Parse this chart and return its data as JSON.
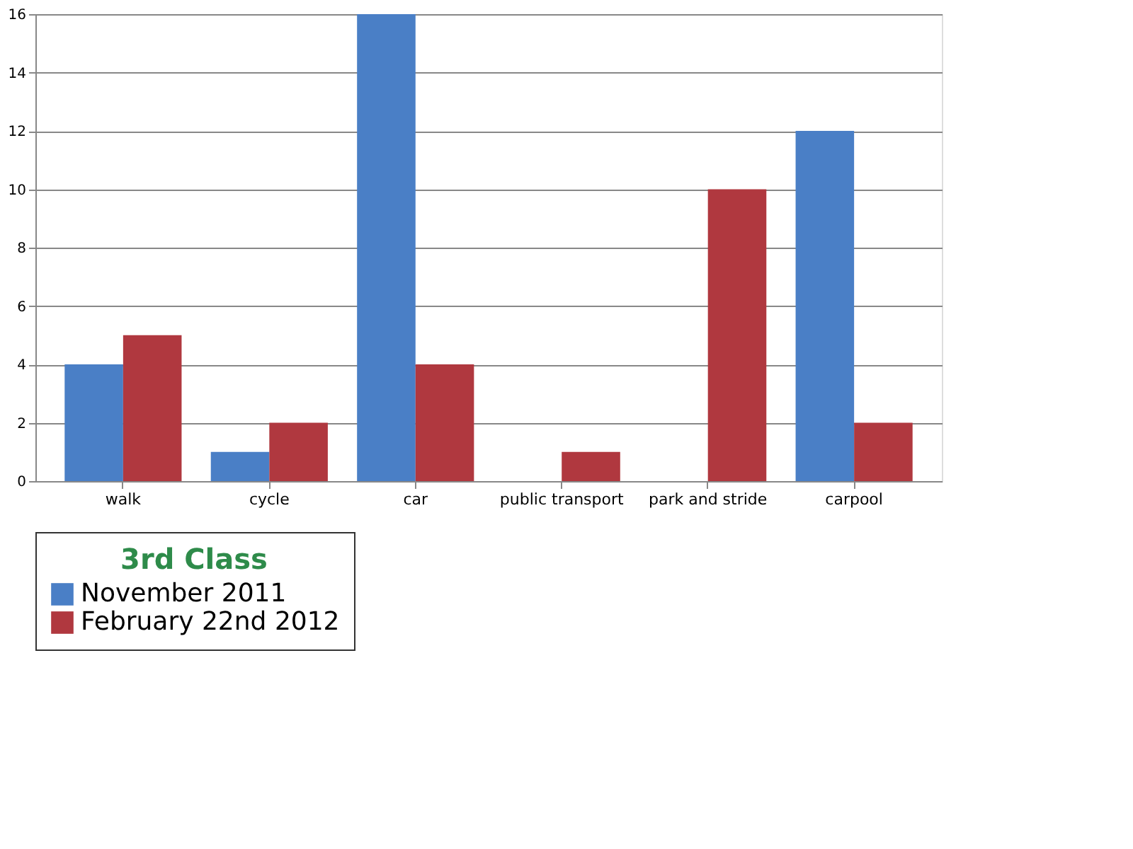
{
  "chart_data": {
    "type": "bar",
    "categories": [
      "walk",
      "cycle",
      "car",
      "public transport",
      "park and stride",
      "carpool"
    ],
    "series": [
      {
        "name": "November 2011",
        "color": "#4a7fc6",
        "values": [
          4,
          1,
          16,
          0,
          0,
          12
        ]
      },
      {
        "name": "February 22nd 2012",
        "color": "#b0383f",
        "values": [
          5,
          2,
          4,
          1,
          10,
          2
        ]
      }
    ],
    "legend_title": "3rd Class",
    "ylim": [
      0,
      16
    ],
    "yticks": [
      0,
      2,
      4,
      6,
      8,
      10,
      12,
      14,
      16
    ],
    "grid": "y",
    "legend": "bottom"
  }
}
